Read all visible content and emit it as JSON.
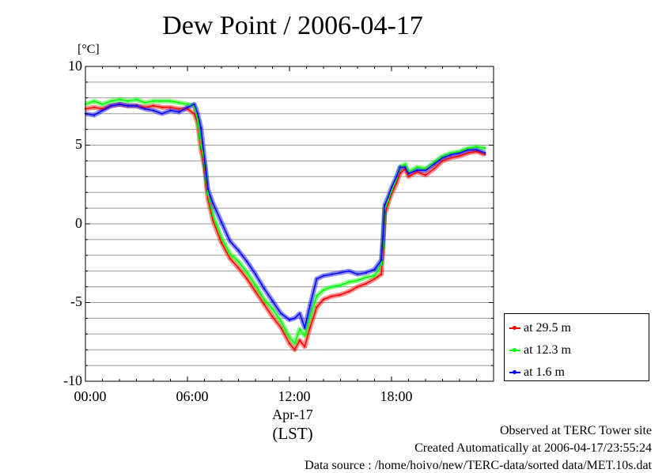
{
  "chart_data": {
    "type": "line",
    "title": "Dew Point / 2006-04-17",
    "unit_label": "[°C]",
    "ylim": [
      -10,
      10
    ],
    "y_ticks": [
      "10",
      "5",
      "0",
      "-5",
      "-10"
    ],
    "x_ticks": [
      "00:00",
      "06:00",
      "12:00",
      "18:00"
    ],
    "x_unit": "hours",
    "xlim": [
      0,
      24
    ],
    "date_label": "Apr-17",
    "timezone_label": "(LST)",
    "grid": true,
    "legend_position": "right",
    "x": [
      0,
      0.5,
      1,
      1.5,
      2,
      2.5,
      3,
      3.5,
      4,
      4.5,
      5,
      5.5,
      6,
      6.4,
      6.6,
      6.8,
      7.0,
      7.2,
      7.5,
      8,
      8.5,
      9,
      9.5,
      10,
      10.5,
      11,
      11.5,
      12,
      12.3,
      12.6,
      12.9,
      13.2,
      13.6,
      14,
      14.5,
      15,
      15.5,
      16,
      16.5,
      17,
      17.4,
      17.5,
      17.6,
      17.8,
      18,
      18.3,
      18.5,
      18.8,
      19,
      19.5,
      20,
      20.5,
      21,
      21.5,
      22,
      22.5,
      23,
      23.5
    ],
    "series": [
      {
        "name": "at 29.5 m",
        "color": "#ff0000",
        "values": [
          7.3,
          7.4,
          7.3,
          7.5,
          7.6,
          7.5,
          7.5,
          7.4,
          7.5,
          7.4,
          7.4,
          7.3,
          7.3,
          7.0,
          6.4,
          4.7,
          3.6,
          1.6,
          0.2,
          -1.2,
          -2.2,
          -2.8,
          -3.5,
          -4.3,
          -5.1,
          -5.9,
          -6.6,
          -7.6,
          -8.0,
          -7.4,
          -7.8,
          -6.6,
          -5.3,
          -4.8,
          -4.6,
          -4.5,
          -4.3,
          -4.0,
          -3.8,
          -3.5,
          -3.2,
          -1.5,
          0.6,
          1.3,
          1.9,
          2.6,
          3.2,
          3.5,
          3.0,
          3.3,
          3.1,
          3.5,
          4.0,
          4.2,
          4.3,
          4.5,
          4.6,
          4.4
        ]
      },
      {
        "name": "at 12.3 m",
        "color": "#00ff00",
        "values": [
          7.6,
          7.8,
          7.6,
          7.8,
          7.9,
          7.8,
          7.9,
          7.7,
          7.8,
          7.8,
          7.8,
          7.7,
          7.6,
          7.5,
          6.6,
          5.0,
          3.9,
          1.9,
          0.5,
          -0.9,
          -1.9,
          -2.4,
          -3.1,
          -3.9,
          -4.8,
          -5.4,
          -6.2,
          -7.2,
          -7.6,
          -6.7,
          -7.1,
          -5.9,
          -4.6,
          -4.2,
          -4.0,
          -3.9,
          -3.7,
          -3.6,
          -3.4,
          -3.3,
          -2.6,
          -1.2,
          0.9,
          1.5,
          2.1,
          2.9,
          3.6,
          3.8,
          3.3,
          3.6,
          3.5,
          3.9,
          4.3,
          4.5,
          4.6,
          4.8,
          4.9,
          4.8
        ]
      },
      {
        "name": "at 1.6 m",
        "color": "#0000ff",
        "values": [
          7.0,
          6.9,
          7.2,
          7.5,
          7.6,
          7.5,
          7.5,
          7.3,
          7.2,
          7.0,
          7.2,
          7.1,
          7.4,
          7.6,
          7.0,
          6.1,
          4.1,
          2.2,
          1.3,
          0.1,
          -1.1,
          -1.7,
          -2.4,
          -3.2,
          -4.1,
          -4.9,
          -5.7,
          -6.1,
          -6.0,
          -5.7,
          -6.6,
          -5.2,
          -3.5,
          -3.3,
          -3.2,
          -3.1,
          -3.0,
          -3.2,
          -3.1,
          -2.9,
          -2.3,
          -0.8,
          1.2,
          1.7,
          2.3,
          3.0,
          3.6,
          3.6,
          3.2,
          3.4,
          3.4,
          3.8,
          4.2,
          4.4,
          4.5,
          4.7,
          4.7,
          4.5
        ]
      }
    ]
  },
  "footer": {
    "site": "Observed at TERC Tower site",
    "created": "Created Automatically at 2006-04-17/23:55:24",
    "source": "Data source : /home/hoivo/new/TERC-data/sorted  data/MET.10s.dat"
  }
}
